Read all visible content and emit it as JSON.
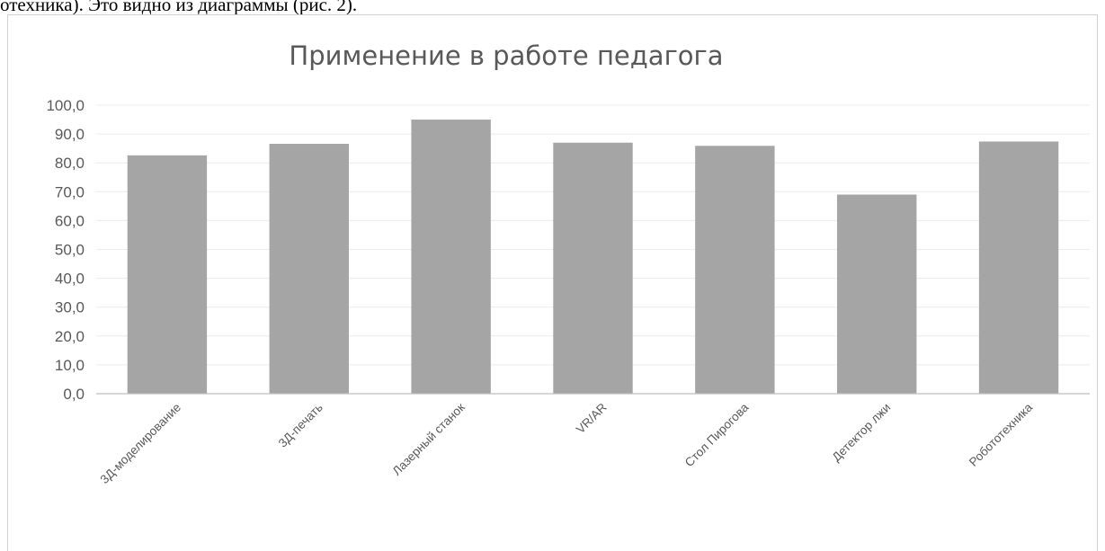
{
  "document": {
    "top_text": "отехника). Это видно из диаграммы (рис. 2)."
  },
  "chart_data": {
    "type": "bar",
    "title": "Применение в работе педагога",
    "categories": [
      "3Д-моделирование",
      "3Д-печать",
      "Лазерный станок",
      "VR/AR",
      "Стол Пирогова",
      "Детектор лжи",
      "Робототехника"
    ],
    "values": [
      82.6,
      86.6,
      95.0,
      87.0,
      85.9,
      69.0,
      87.4
    ],
    "yticks": [
      "0,0",
      "10,0",
      "20,0",
      "30,0",
      "40,0",
      "50,0",
      "60,0",
      "70,0",
      "80,0",
      "90,0",
      "100,0"
    ],
    "ylim": [
      0,
      100
    ],
    "xlabel": "",
    "ylabel": "",
    "grid": true,
    "legend": "none",
    "bar_color": "#a5a5a5",
    "grid_color": "#ececec",
    "axis_color": "#bfbfbf"
  }
}
